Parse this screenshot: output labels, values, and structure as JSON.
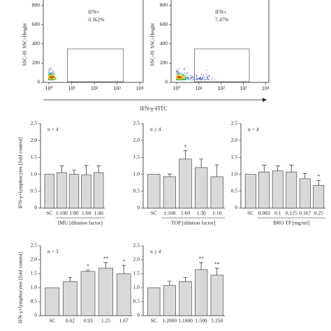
{
  "chart_data": [
    {
      "type": "flow",
      "ylabel": "SSC-H: SSC-Height",
      "ylim": [
        0,
        1000
      ],
      "yticks": [
        0,
        200,
        400,
        600,
        800
      ],
      "xlim": [
        -0.25,
        4.15
      ],
      "xticks": [
        {
          "value": 0,
          "label": "10⁰"
        },
        {
          "value": 1,
          "label": "10¹"
        },
        {
          "value": 2,
          "label": "10²"
        },
        {
          "value": 3,
          "label": "10³"
        },
        {
          "value": 4,
          "label": "10⁴"
        }
      ],
      "gate_text": [
        "IFN+",
        "0.362%"
      ]
    },
    {
      "type": "flow",
      "ylabel": "SSC-H: SSC-Height",
      "ylim": [
        0,
        1000
      ],
      "yticks": [
        0,
        200,
        400,
        600,
        800
      ],
      "xlim": [
        -0.25,
        4.15
      ],
      "xticks": [
        {
          "value": 0,
          "label": "10⁰"
        },
        {
          "value": 1,
          "label": "10¹"
        },
        {
          "value": 2,
          "label": "10²"
        },
        {
          "value": 3,
          "label": "10³"
        },
        {
          "value": 4,
          "label": "10⁴"
        }
      ],
      "gate_text": [
        "IFN+",
        "7.47%"
      ],
      "xlabel": "IFN-γ-FITC"
    },
    {
      "type": "bar",
      "n_label": "n = 4",
      "ylabel": "IFN-γ+lymphocytes [fold control]",
      "xlabel": "IMU [dilution factor]",
      "categories": [
        "SC",
        "1:100",
        "1:80",
        "1:60",
        "1:40"
      ],
      "values": [
        1.0,
        1.05,
        1.0,
        0.98,
        1.05
      ],
      "errors": [
        null,
        0.2,
        0.12,
        0.28,
        0.2
      ],
      "significance": [
        null,
        null,
        null,
        null,
        null
      ],
      "color": "#d9d9d9",
      "ylim": [
        0,
        2.5
      ],
      "yticks": [
        0,
        0.5,
        {
          "value": 1,
          "label": "1.0"
        },
        1.5,
        {
          "value": 2,
          "label": "2.0"
        },
        2.5
      ]
    },
    {
      "type": "bar",
      "n_label": "n ≥ 4",
      "xlabel": "TOP [dilution factor]",
      "categories": [
        "SC",
        "1:100",
        "1:60",
        "1:30",
        "1:10"
      ],
      "values": [
        1.0,
        0.93,
        1.45,
        1.2,
        0.93
      ],
      "errors": [
        null,
        0.08,
        0.25,
        0.25,
        0.35
      ],
      "significance": [
        null,
        null,
        "*",
        null,
        null
      ],
      "color": "#d9d9d9",
      "ylim": [
        0,
        2.5
      ],
      "yticks": [
        0,
        0.5,
        {
          "value": 1,
          "label": "1.0"
        },
        1.5,
        {
          "value": 2,
          "label": "2.0"
        },
        2.5
      ]
    },
    {
      "type": "bar",
      "n_label": "n = 4",
      "xlabel": "BRO TP [mg/ml]",
      "categories": [
        "SC",
        "0.083",
        "0.1",
        "0.125",
        "0.167",
        "0.25"
      ],
      "values": [
        1.0,
        1.07,
        1.1,
        1.07,
        0.87,
        0.67
      ],
      "errors": [
        null,
        0.2,
        0.15,
        0.2,
        0.15,
        0.15
      ],
      "significance": [
        null,
        null,
        null,
        null,
        null,
        "*"
      ],
      "color": "#d9d9d9",
      "ylim": [
        0,
        2.5
      ],
      "yticks": [
        0,
        0.5,
        {
          "value": 1,
          "label": "1.0"
        },
        1.5,
        {
          "value": 2,
          "label": "2.0"
        },
        2.5
      ]
    },
    {
      "type": "bar",
      "n_label": "n = 3",
      "ylabel": "IFN-γ+lymphocytes [fold control]",
      "categories": [
        "SC",
        "0.62",
        "0.93",
        "1.25",
        "1.67"
      ],
      "values": [
        1.0,
        1.22,
        1.58,
        1.7,
        1.5
      ],
      "errors": [
        null,
        0.15,
        0.05,
        0.2,
        0.3
      ],
      "significance": [
        null,
        null,
        "*",
        "**",
        "*"
      ],
      "color": "#d9d9d9",
      "ylim": [
        0,
        2.5
      ],
      "yticks": [
        0,
        0.5,
        {
          "value": 1,
          "label": "1.0"
        },
        1.5,
        {
          "value": 2,
          "label": "2.0"
        },
        2.5
      ]
    },
    {
      "type": "bar",
      "n_label": "n ≥ 4",
      "categories": [
        "SC",
        "1:2000",
        "1:1000",
        "1:500",
        "1:250"
      ],
      "values": [
        1.0,
        1.08,
        1.22,
        1.65,
        1.45
      ],
      "errors": [
        null,
        0.15,
        0.15,
        0.25,
        0.25
      ],
      "significance": [
        null,
        null,
        null,
        "**",
        "**"
      ],
      "color": "#d9d9d9",
      "ylim": [
        0,
        2.5
      ],
      "yticks": [
        0,
        0.5,
        {
          "value": 1,
          "label": "1.0"
        },
        1.5,
        {
          "value": 2,
          "label": "2.0"
        },
        2.5
      ]
    }
  ]
}
